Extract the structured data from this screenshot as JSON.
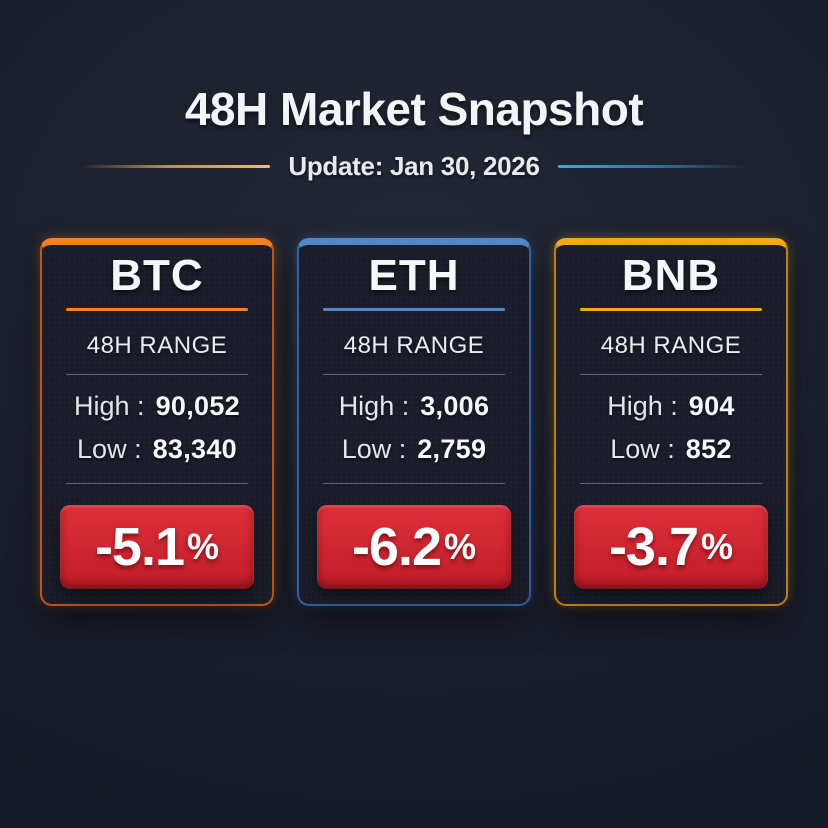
{
  "header": {
    "title": "48H Market Snapshot",
    "subtitle": "Update: Jan 30, 2026",
    "left_line_color": "#f0bc78",
    "right_line_color": "#41aad6"
  },
  "colors": {
    "background": "#1a1e2b",
    "card_background": "#1a1d29",
    "badge_red_top": "#de3039",
    "badge_red_bottom": "#c01d29",
    "divider_gray": "#9aa2b0",
    "text_primary": "#f4f5f7"
  },
  "cards": [
    {
      "symbol": "BTC",
      "accent_bright": "#f5801f",
      "accent_dim": "#c35317",
      "range_label": "48H RANGE",
      "high_label": "High :",
      "high_value": "90,052",
      "low_label": "Low :",
      "low_value": "83,340",
      "change": "-5.1",
      "change_unit": "%"
    },
    {
      "symbol": "ETH",
      "accent_bright": "#4f87c9",
      "accent_dim": "#35609c",
      "range_label": "48H RANGE",
      "high_label": "High :",
      "high_value": "3,006",
      "low_label": "Low :",
      "low_value": "2,759",
      "change": "-6.2",
      "change_unit": "%"
    },
    {
      "symbol": "BNB",
      "accent_bright": "#f3a912",
      "accent_dim": "#c07f10",
      "range_label": "48H RANGE",
      "high_label": "High :",
      "high_value": "904",
      "low_label": "Low :",
      "low_value": "852",
      "change": "-3.7",
      "change_unit": "%"
    }
  ],
  "chart_data": {
    "type": "table",
    "title": "48H Market Snapshot",
    "subtitle": "Update: Jan 30, 2026",
    "categories": [
      "BTC",
      "ETH",
      "BNB"
    ],
    "series": [
      {
        "name": "48H High",
        "values": [
          90052,
          3006,
          904
        ]
      },
      {
        "name": "48H Low",
        "values": [
          83340,
          2759,
          852
        ]
      },
      {
        "name": "Change %",
        "values": [
          -5.1,
          -6.2,
          -3.7
        ]
      }
    ]
  }
}
